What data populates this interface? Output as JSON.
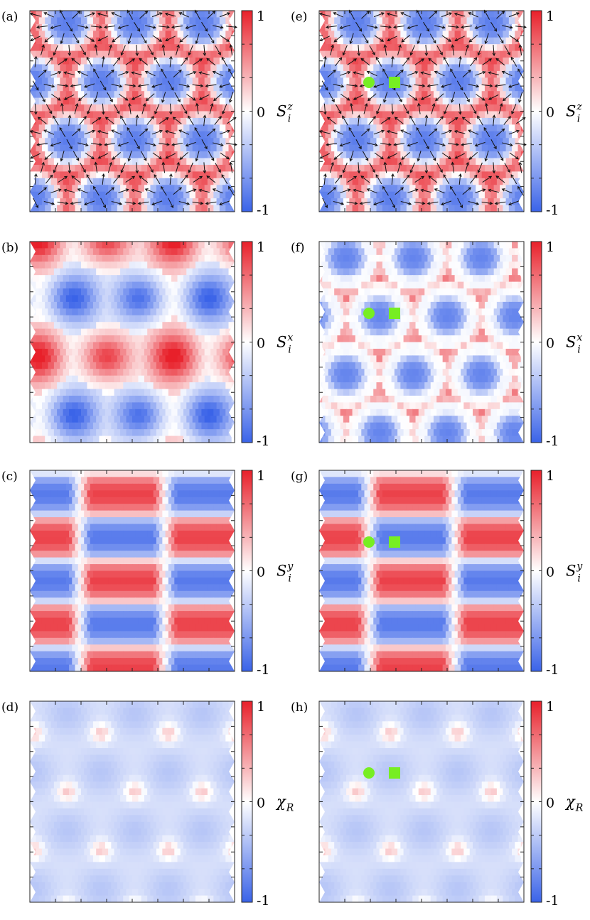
{
  "chart_data": [
    {
      "type": "heatmap",
      "panel_label": "(a)",
      "quantity": {
        "symbol": "S",
        "superscript": "z",
        "subscript": "i"
      },
      "colorbar": {
        "min": -1,
        "max": 1,
        "ticks": [
          "1",
          "0",
          "-1"
        ],
        "colors": [
          "#3a63e8",
          "#ffffff",
          "#e8202a"
        ]
      },
      "pattern": "hex_skyrmion_lattice",
      "background_value": 0.92,
      "core_value": -0.85,
      "arrows": true,
      "markers": []
    },
    {
      "type": "heatmap",
      "panel_label": "(b)",
      "quantity": {
        "symbol": "S",
        "superscript": "x",
        "subscript": "i"
      },
      "colorbar": {
        "min": -1,
        "max": 1,
        "ticks": [
          "1",
          "0",
          "-1"
        ],
        "colors": [
          "#3a63e8",
          "#ffffff",
          "#e8202a"
        ]
      },
      "pattern": "hex_alternating_x",
      "amplitude": 0.8,
      "arrows": false,
      "markers": []
    },
    {
      "type": "heatmap",
      "panel_label": "(c)",
      "quantity": {
        "symbol": "S",
        "superscript": "y",
        "subscript": "i"
      },
      "colorbar": {
        "min": -1,
        "max": 1,
        "ticks": [
          "1",
          "0",
          "-1"
        ],
        "colors": [
          "#3a63e8",
          "#ffffff",
          "#e8202a"
        ]
      },
      "pattern": "horizontal_stripes",
      "amplitude": 0.85,
      "arrows": false,
      "markers": []
    },
    {
      "type": "heatmap",
      "panel_label": "(d)",
      "quantity": {
        "symbol": "χ",
        "superscript": "",
        "subscript": "R"
      },
      "colorbar": {
        "min": -1,
        "max": 1,
        "ticks": [
          "1",
          "0",
          "-1"
        ],
        "colors": [
          "#3a63e8",
          "#ffffff",
          "#e8202a"
        ]
      },
      "pattern": "chirality",
      "amplitude": 0.35,
      "arrows": false,
      "markers": []
    },
    {
      "type": "heatmap",
      "panel_label": "(e)",
      "quantity": {
        "symbol": "S",
        "superscript": "z",
        "subscript": "i"
      },
      "colorbar": {
        "min": -1,
        "max": 1,
        "ticks": [
          "1",
          "0",
          "-1"
        ],
        "colors": [
          "#3a63e8",
          "#ffffff",
          "#e8202a"
        ]
      },
      "pattern": "hex_skyrmion_lattice",
      "background_value": 0.92,
      "core_value": -0.85,
      "arrows": true,
      "markers": [
        {
          "shape": "circle",
          "color": "#77ee22"
        },
        {
          "shape": "square",
          "color": "#77ee22"
        }
      ]
    },
    {
      "type": "heatmap",
      "panel_label": "(f)",
      "quantity": {
        "symbol": "S",
        "superscript": "x",
        "subscript": "i"
      },
      "colorbar": {
        "min": -1,
        "max": 1,
        "ticks": [
          "1",
          "0",
          "-1"
        ],
        "colors": [
          "#3a63e8",
          "#ffffff",
          "#e8202a"
        ]
      },
      "pattern": "hex_skyrmion_x",
      "background_value": 0.7,
      "core_value": -0.8,
      "arrows": false,
      "markers": [
        {
          "shape": "circle",
          "color": "#77ee22"
        },
        {
          "shape": "square",
          "color": "#77ee22"
        }
      ]
    },
    {
      "type": "heatmap",
      "panel_label": "(g)",
      "quantity": {
        "symbol": "S",
        "superscript": "y",
        "subscript": "i"
      },
      "colorbar": {
        "min": -1,
        "max": 1,
        "ticks": [
          "1",
          "0",
          "-1"
        ],
        "colors": [
          "#3a63e8",
          "#ffffff",
          "#e8202a"
        ]
      },
      "pattern": "horizontal_stripes",
      "amplitude": 0.85,
      "arrows": false,
      "markers": [
        {
          "shape": "circle",
          "color": "#77ee22"
        },
        {
          "shape": "square",
          "color": "#77ee22"
        }
      ]
    },
    {
      "type": "heatmap",
      "panel_label": "(h)",
      "quantity": {
        "symbol": "χ",
        "superscript": "",
        "subscript": "R"
      },
      "colorbar": {
        "min": -1,
        "max": 1,
        "ticks": [
          "1",
          "0",
          "-1"
        ],
        "colors": [
          "#3a63e8",
          "#ffffff",
          "#e8202a"
        ]
      },
      "pattern": "chirality",
      "amplitude": 0.35,
      "arrows": false,
      "markers": [
        {
          "shape": "circle",
          "color": "#77ee22"
        },
        {
          "shape": "square",
          "color": "#77ee22"
        }
      ]
    }
  ]
}
